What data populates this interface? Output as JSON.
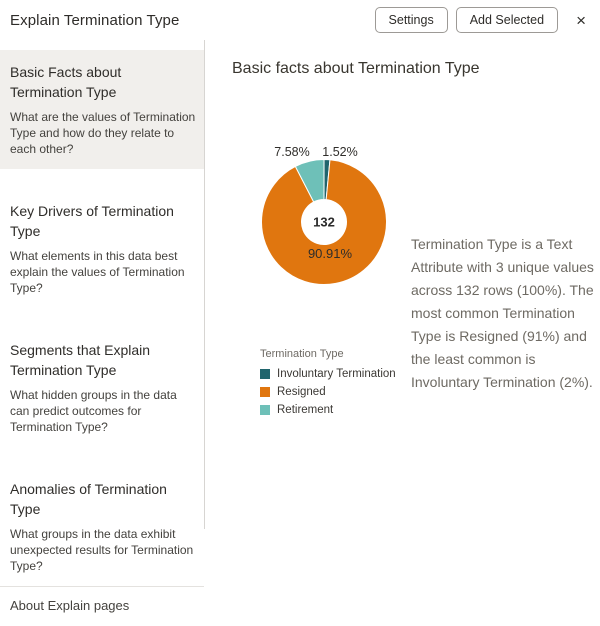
{
  "header": {
    "title": "Explain Termination Type",
    "settings_label": "Settings",
    "add_selected_label": "Add Selected",
    "close_glyph": "×"
  },
  "sidebar": {
    "items": [
      {
        "title": "Basic Facts about Termination Type",
        "description": "What are the values of Termination Type and how do they relate to each other?",
        "selected": true
      },
      {
        "title": "Key Drivers of Termination Type",
        "description": "What elements in this data best explain the values of Termination Type?",
        "selected": false
      },
      {
        "title": "Segments that Explain Termination Type",
        "description": "What hidden groups in the data can predict outcomes for Termination Type?",
        "selected": false
      },
      {
        "title": "Anomalies of Termination Type",
        "description": "What groups in the data exhibit unexpected results for Termination Type?",
        "selected": false
      }
    ],
    "footer_link": "About Explain pages"
  },
  "main": {
    "heading": "Basic facts about Termination Type",
    "summary": "Termination Type is a Text Attribute with 3 unique values across 132 rows (100%). The most common Termination Type is Resigned (91%) and the least common is Involuntary Termination (2%)."
  },
  "chart_data": {
    "type": "pie",
    "subtype": "donut",
    "title": "Termination Type",
    "legend_title": "Termination Type",
    "legend_position": "bottom-left",
    "center_label": "132",
    "total_rows": 132,
    "hole_radius_ratio": 0.36,
    "start_angle_deg": 0,
    "direction": "clockwise",
    "slices": [
      {
        "label": "Involuntary Termination",
        "pct": 1.52,
        "pct_label": "1.52%",
        "color": "#20656d"
      },
      {
        "label": "Resigned",
        "pct": 90.91,
        "pct_label": "90.91%",
        "color": "#e0760f"
      },
      {
        "label": "Retirement",
        "pct": 7.58,
        "pct_label": "7.58%",
        "color": "#6ec0b8"
      }
    ]
  }
}
